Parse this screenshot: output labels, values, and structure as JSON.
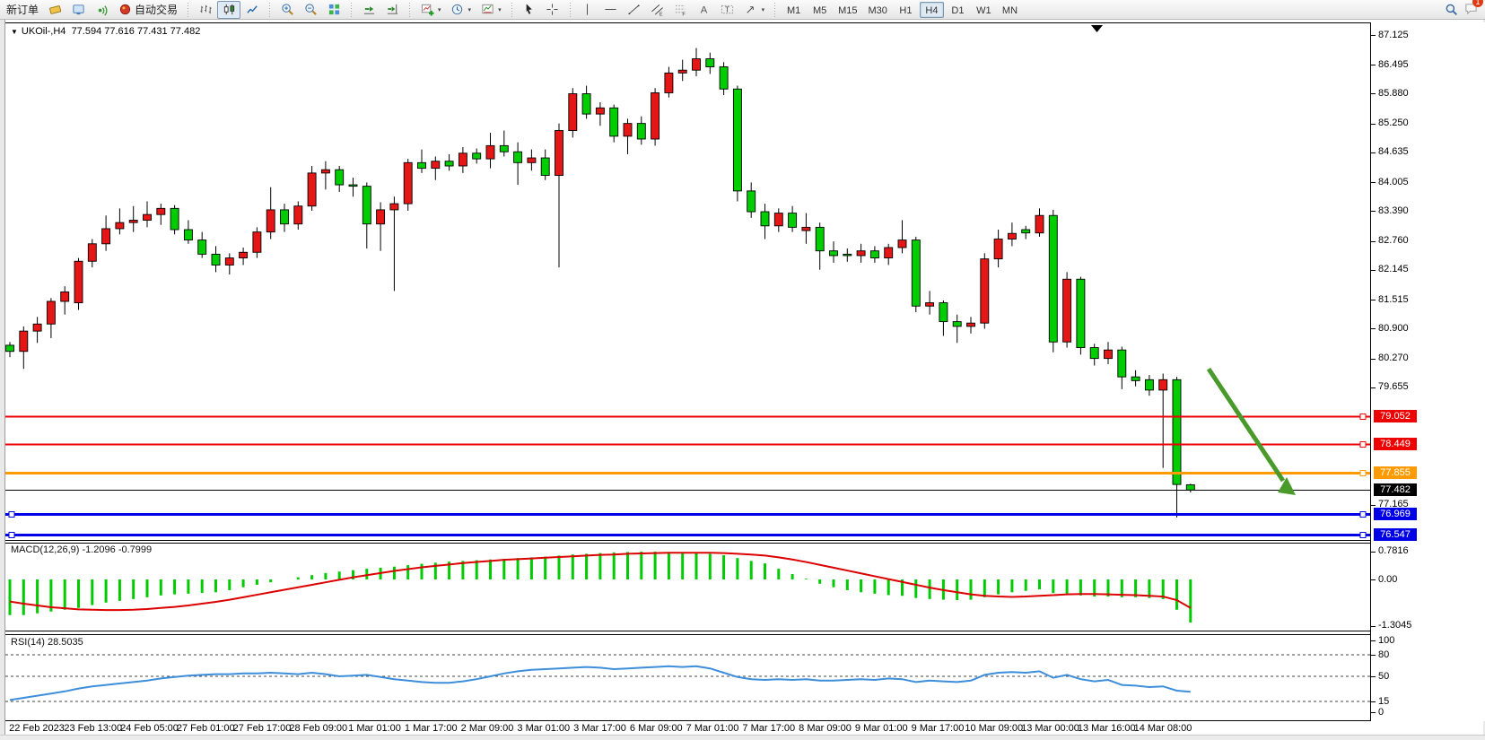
{
  "toolbar": {
    "new_order_label": "新订单",
    "autotrading_label": "自动交易",
    "timeframes": [
      "M1",
      "M5",
      "M15",
      "M30",
      "H1",
      "H4",
      "D1",
      "W1",
      "MN"
    ],
    "active_timeframe": "H4",
    "notification_count": "1"
  },
  "chart": {
    "title_symbol": "UKOil-,H4",
    "title_ohlc": "77.594 77.616 77.431 77.482",
    "price_ticks": [
      "87.125",
      "86.495",
      "85.880",
      "85.250",
      "84.635",
      "84.005",
      "83.390",
      "82.760",
      "82.145",
      "81.515",
      "80.900",
      "80.270",
      "79.655",
      "77.165"
    ],
    "lines": [
      {
        "value": 79.052,
        "label": "79.052",
        "color": "#ee0000",
        "width": 2
      },
      {
        "value": 78.449,
        "label": "78.449",
        "color": "#ee0000",
        "width": 2
      },
      {
        "value": 77.855,
        "label": "77.855",
        "color": "#ff9a00",
        "width": 3
      },
      {
        "value": 77.482,
        "label": "77.482",
        "color": "#000000",
        "width": 1
      },
      {
        "value": 76.969,
        "label": "76.969",
        "color": "#0000e6",
        "width": 3
      },
      {
        "value": 76.547,
        "label": "76.547",
        "color": "#0000e6",
        "width": 3
      }
    ],
    "time_labels": [
      "22 Feb 2023",
      "23 Feb 13:00",
      "24 Feb 05:00",
      "27 Feb 01:00",
      "27 Feb 17:00",
      "28 Feb 09:00",
      "1 Mar 01:00",
      "1 Mar 17:00",
      "2 Mar 09:00",
      "3 Mar 01:00",
      "3 Mar 17:00",
      "6 Mar 09:00",
      "7 Mar 01:00",
      "7 Mar 17:00",
      "8 Mar 09:00",
      "9 Mar 01:00",
      "9 Mar 17:00",
      "10 Mar 09:00",
      "13 Mar 00:00",
      "13 Mar 16:00",
      "14 Mar 08:00"
    ]
  },
  "macd_panel": {
    "label": "MACD(12,26,9) -1.2096 -0.7999",
    "scale": [
      "0.7816",
      "0.00",
      "-1.3045"
    ]
  },
  "rsi_panel": {
    "label": "RSI(14) 28.5035",
    "levels": [
      "100",
      "80",
      "50",
      "15",
      "0"
    ]
  },
  "chart_data": {
    "type": "candlestick",
    "symbol": "UKOil-",
    "timeframe": "H4",
    "title": "UKOil-,H4 77.594 77.616 77.431 77.482",
    "up_color": "#e41616",
    "down_color": "#00cd00",
    "price_range": [
      76.42,
      87.39
    ],
    "ohlc": [
      [
        80.55,
        80.62,
        80.3,
        80.42
      ],
      [
        80.42,
        80.95,
        80.05,
        80.85
      ],
      [
        80.85,
        81.15,
        80.6,
        81.0
      ],
      [
        81.0,
        81.55,
        80.7,
        81.48
      ],
      [
        81.48,
        81.8,
        81.2,
        81.68
      ],
      [
        81.45,
        82.4,
        81.3,
        82.33
      ],
      [
        82.33,
        82.8,
        82.2,
        82.7
      ],
      [
        82.7,
        83.3,
        82.55,
        83.02
      ],
      [
        83.02,
        83.45,
        82.9,
        83.15
      ],
      [
        83.15,
        83.5,
        82.95,
        83.2
      ],
      [
        83.2,
        83.6,
        83.05,
        83.32
      ],
      [
        83.32,
        83.55,
        83.1,
        83.45
      ],
      [
        83.45,
        83.52,
        82.9,
        83.0
      ],
      [
        83.0,
        83.2,
        82.7,
        82.78
      ],
      [
        82.78,
        82.95,
        82.4,
        82.48
      ],
      [
        82.48,
        82.65,
        82.1,
        82.25
      ],
      [
        82.25,
        82.5,
        82.05,
        82.4
      ],
      [
        82.4,
        82.62,
        82.25,
        82.52
      ],
      [
        82.52,
        83.05,
        82.4,
        82.95
      ],
      [
        82.95,
        83.9,
        82.8,
        83.42
      ],
      [
        83.42,
        83.55,
        82.95,
        83.12
      ],
      [
        83.12,
        83.6,
        83.0,
        83.5
      ],
      [
        83.5,
        84.35,
        83.4,
        84.2
      ],
      [
        84.2,
        84.45,
        83.85,
        84.27
      ],
      [
        84.27,
        84.35,
        83.8,
        83.95
      ],
      [
        83.95,
        84.1,
        83.7,
        83.92
      ],
      [
        83.92,
        84.0,
        82.6,
        83.12
      ],
      [
        83.12,
        83.58,
        82.55,
        83.42
      ],
      [
        83.42,
        83.7,
        81.7,
        83.55
      ],
      [
        83.55,
        84.5,
        83.4,
        84.42
      ],
      [
        84.42,
        84.7,
        84.2,
        84.3
      ],
      [
        84.3,
        84.55,
        84.05,
        84.45
      ],
      [
        84.45,
        84.6,
        84.25,
        84.35
      ],
      [
        84.35,
        84.75,
        84.2,
        84.62
      ],
      [
        84.62,
        84.72,
        84.4,
        84.5
      ],
      [
        84.5,
        85.05,
        84.3,
        84.78
      ],
      [
        84.78,
        85.1,
        84.55,
        84.65
      ],
      [
        84.65,
        84.85,
        83.95,
        84.42
      ],
      [
        84.42,
        84.7,
        84.25,
        84.52
      ],
      [
        84.52,
        84.7,
        84.05,
        84.15
      ],
      [
        84.15,
        85.25,
        82.2,
        85.1
      ],
      [
        85.1,
        86.0,
        84.95,
        85.88
      ],
      [
        85.88,
        86.05,
        85.35,
        85.45
      ],
      [
        85.45,
        85.7,
        85.2,
        85.58
      ],
      [
        85.58,
        85.65,
        84.85,
        84.98
      ],
      [
        84.98,
        85.35,
        84.6,
        85.25
      ],
      [
        85.25,
        85.4,
        84.8,
        84.92
      ],
      [
        84.92,
        86.0,
        84.78,
        85.9
      ],
      [
        85.9,
        86.45,
        85.8,
        86.32
      ],
      [
        86.32,
        86.6,
        86.15,
        86.38
      ],
      [
        86.38,
        86.85,
        86.25,
        86.62
      ],
      [
        86.62,
        86.75,
        86.3,
        86.45
      ],
      [
        86.45,
        86.55,
        85.85,
        85.98
      ],
      [
        85.98,
        86.05,
        83.6,
        83.82
      ],
      [
        83.82,
        84.0,
        83.25,
        83.38
      ],
      [
        83.38,
        83.55,
        82.8,
        83.08
      ],
      [
        83.08,
        83.45,
        82.95,
        83.35
      ],
      [
        83.35,
        83.5,
        82.95,
        83.05
      ],
      [
        82.98,
        83.35,
        82.7,
        83.05
      ],
      [
        83.05,
        83.15,
        82.15,
        82.55
      ],
      [
        82.55,
        82.75,
        82.3,
        82.45
      ],
      [
        82.48,
        82.6,
        82.32,
        82.45
      ],
      [
        82.45,
        82.7,
        82.3,
        82.55
      ],
      [
        82.55,
        82.65,
        82.3,
        82.4
      ],
      [
        82.4,
        82.7,
        82.25,
        82.62
      ],
      [
        82.62,
        83.2,
        82.5,
        82.78
      ],
      [
        82.78,
        82.85,
        81.25,
        81.38
      ],
      [
        81.38,
        81.7,
        81.2,
        81.45
      ],
      [
        81.45,
        81.5,
        80.75,
        81.05
      ],
      [
        81.05,
        81.2,
        80.6,
        80.95
      ],
      [
        80.95,
        81.15,
        80.8,
        81.02
      ],
      [
        81.02,
        82.5,
        80.9,
        82.38
      ],
      [
        82.38,
        83.0,
        82.2,
        82.8
      ],
      [
        82.8,
        83.15,
        82.65,
        82.92
      ],
      [
        83.0,
        83.08,
        82.8,
        82.93
      ],
      [
        82.93,
        83.45,
        82.85,
        83.3
      ],
      [
        83.3,
        83.42,
        80.4,
        80.62
      ],
      [
        80.62,
        82.1,
        80.5,
        81.95
      ],
      [
        81.95,
        82.0,
        80.35,
        80.5
      ],
      [
        80.5,
        80.58,
        80.12,
        80.27
      ],
      [
        80.27,
        80.62,
        80.15,
        80.45
      ],
      [
        80.45,
        80.52,
        79.62,
        79.88
      ],
      [
        79.88,
        80.02,
        79.68,
        79.8
      ],
      [
        79.82,
        79.92,
        79.48,
        79.6
      ],
      [
        79.6,
        79.95,
        77.95,
        79.82
      ],
      [
        79.82,
        79.88,
        76.9,
        77.6
      ],
      [
        77.594,
        77.616,
        77.431,
        77.482
      ]
    ],
    "indicators": {
      "macd": {
        "params": "12,26,9",
        "current_macd": -1.2096,
        "current_signal": -0.7999,
        "scale": [
          0.7816,
          0.0,
          -1.3045
        ],
        "histogram": [
          -1.0,
          -1.0,
          -0.95,
          -0.9,
          -0.85,
          -0.8,
          -0.72,
          -0.65,
          -0.6,
          -0.55,
          -0.5,
          -0.45,
          -0.42,
          -0.4,
          -0.38,
          -0.36,
          -0.3,
          -0.22,
          -0.15,
          -0.08,
          0.0,
          0.06,
          0.12,
          0.18,
          0.22,
          0.26,
          0.3,
          0.33,
          0.36,
          0.4,
          0.44,
          0.47,
          0.5,
          0.52,
          0.54,
          0.56,
          0.58,
          0.6,
          0.62,
          0.64,
          0.67,
          0.7,
          0.72,
          0.74,
          0.76,
          0.77,
          0.78,
          0.78,
          0.77,
          0.76,
          0.75,
          0.72,
          0.68,
          0.6,
          0.52,
          0.45,
          0.3,
          0.15,
          0.02,
          -0.12,
          -0.22,
          -0.3,
          -0.36,
          -0.4,
          -0.44,
          -0.46,
          -0.52,
          -0.55,
          -0.57,
          -0.58,
          -0.57,
          -0.5,
          -0.42,
          -0.36,
          -0.32,
          -0.28,
          -0.38,
          -0.4,
          -0.45,
          -0.48,
          -0.48,
          -0.5,
          -0.5,
          -0.52,
          -0.55,
          -0.85,
          -1.21
        ],
        "signal": [
          -0.62,
          -0.68,
          -0.73,
          -0.78,
          -0.81,
          -0.84,
          -0.85,
          -0.86,
          -0.86,
          -0.85,
          -0.83,
          -0.8,
          -0.77,
          -0.73,
          -0.68,
          -0.63,
          -0.57,
          -0.5,
          -0.43,
          -0.36,
          -0.29,
          -0.22,
          -0.15,
          -0.08,
          -0.01,
          0.06,
          0.12,
          0.18,
          0.24,
          0.29,
          0.34,
          0.38,
          0.42,
          0.46,
          0.49,
          0.52,
          0.55,
          0.57,
          0.59,
          0.61,
          0.63,
          0.65,
          0.67,
          0.69,
          0.7,
          0.72,
          0.73,
          0.74,
          0.75,
          0.75,
          0.75,
          0.75,
          0.74,
          0.72,
          0.7,
          0.67,
          0.62,
          0.56,
          0.49,
          0.41,
          0.33,
          0.25,
          0.17,
          0.09,
          0.01,
          -0.07,
          -0.15,
          -0.23,
          -0.3,
          -0.36,
          -0.42,
          -0.46,
          -0.48,
          -0.49,
          -0.48,
          -0.46,
          -0.44,
          -0.42,
          -0.41,
          -0.41,
          -0.42,
          -0.43,
          -0.44,
          -0.46,
          -0.48,
          -0.58,
          -0.8
        ]
      },
      "rsi": {
        "period": 14,
        "current": 28.5035,
        "levels": [
          80,
          50,
          15
        ],
        "values": [
          17,
          20,
          23,
          26,
          29,
          33,
          36,
          38,
          40,
          42,
          44,
          47,
          49,
          51,
          52,
          53,
          53,
          54,
          54,
          55,
          54,
          53,
          55,
          53,
          50,
          51,
          52,
          49,
          46,
          44,
          42,
          41,
          41,
          43,
          46,
          50,
          54,
          57,
          59,
          60,
          61,
          62,
          63,
          62,
          60,
          61,
          62,
          63,
          64,
          63,
          64,
          61,
          55,
          49,
          46,
          45,
          46,
          45,
          46,
          44,
          44,
          45,
          46,
          45,
          47,
          46,
          42,
          44,
          43,
          42,
          44,
          52,
          55,
          56,
          55,
          57,
          48,
          52,
          46,
          43,
          45,
          38,
          37,
          35,
          36,
          30,
          28.5
        ]
      }
    },
    "horizontal_levels": [
      79.052,
      78.449,
      77.855,
      77.482,
      76.969,
      76.547
    ],
    "annotations": [
      {
        "type": "arrow",
        "color": "#4a992b",
        "from_price": 80.05,
        "to_price": 77.45,
        "direction": "down-right"
      }
    ]
  }
}
